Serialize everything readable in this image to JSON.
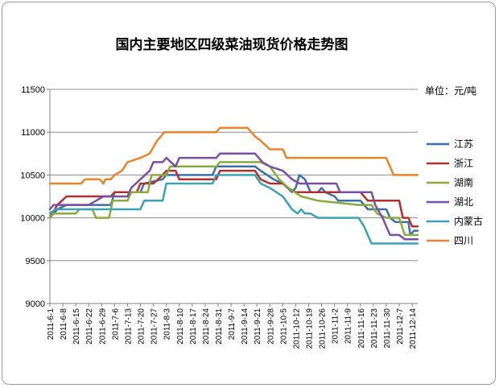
{
  "chart_data": {
    "type": "line",
    "title": "国内主要地区四级菜油现货价格走势图",
    "unit_label": "单位：元/吨",
    "ylim": [
      9000,
      11500
    ],
    "yticks": [
      9000,
      9500,
      10000,
      10500,
      11000,
      11500
    ],
    "grid": "horizontal",
    "legend_position": "right",
    "x_range": [
      "2011-6-1",
      "2011-12-17"
    ],
    "xticks": [
      "2011-6-1",
      "2011-6-8",
      "2011-6-15",
      "2011-6-22",
      "2011-6-29",
      "2011-7-6",
      "2011-7-13",
      "2011-7-20",
      "2011-7-27",
      "2011-8-3",
      "2011-8-10",
      "2011-8-17",
      "2011-8-24",
      "2011-8-31",
      "2011-9-7",
      "2011-9-14",
      "2011-9-21",
      "2011-9-28",
      "2011-10-5",
      "2011-10-12",
      "2011-10-19",
      "2011-10-26",
      "2011-11-2",
      "2011-11-9",
      "2011-11-16",
      "2011-11-23",
      "2011-11-30",
      "2011-12-7",
      "2011-12-14"
    ],
    "series": [
      {
        "name": "江苏",
        "color": "#3a6fa8",
        "points": [
          [
            "2011-6-1",
            10000
          ],
          [
            "2011-6-5",
            10100
          ],
          [
            "2011-6-10",
            10150
          ],
          [
            "2011-7-4",
            10150
          ],
          [
            "2011-7-6",
            10300
          ],
          [
            "2011-7-20",
            10300
          ],
          [
            "2011-7-22",
            10400
          ],
          [
            "2011-8-1",
            10450
          ],
          [
            "2011-8-3",
            10500
          ],
          [
            "2011-8-28",
            10500
          ],
          [
            "2011-8-30",
            10600
          ],
          [
            "2011-9-20",
            10600
          ],
          [
            "2011-9-23",
            10550
          ],
          [
            "2011-9-30",
            10450
          ],
          [
            "2011-10-5",
            10400
          ],
          [
            "2011-10-10",
            10300
          ],
          [
            "2011-10-12",
            10350
          ],
          [
            "2011-10-14",
            10500
          ],
          [
            "2011-10-17",
            10450
          ],
          [
            "2011-10-19",
            10350
          ],
          [
            "2011-10-20",
            10300
          ],
          [
            "2011-10-24",
            10300
          ],
          [
            "2011-10-26",
            10350
          ],
          [
            "2011-10-28",
            10300
          ],
          [
            "2011-11-2",
            10250
          ],
          [
            "2011-11-4",
            10200
          ],
          [
            "2011-11-16",
            10200
          ],
          [
            "2011-11-20",
            10100
          ],
          [
            "2011-11-30",
            10100
          ],
          [
            "2011-12-2",
            10000
          ],
          [
            "2011-12-5",
            9950
          ],
          [
            "2011-12-12",
            9950
          ],
          [
            "2011-12-13",
            9800
          ],
          [
            "2011-12-15",
            9850
          ],
          [
            "2011-12-17",
            9850
          ]
        ]
      },
      {
        "name": "浙江",
        "color": "#b03030",
        "points": [
          [
            "2011-6-1",
            10000
          ],
          [
            "2011-6-5",
            10150
          ],
          [
            "2011-6-10",
            10250
          ],
          [
            "2011-7-4",
            10250
          ],
          [
            "2011-7-6",
            10300
          ],
          [
            "2011-7-18",
            10300
          ],
          [
            "2011-7-20",
            10400
          ],
          [
            "2011-7-27",
            10400
          ],
          [
            "2011-8-1",
            10500
          ],
          [
            "2011-8-3",
            10550
          ],
          [
            "2011-8-8",
            10550
          ],
          [
            "2011-8-10",
            10450
          ],
          [
            "2011-8-30",
            10450
          ],
          [
            "2011-9-1",
            10550
          ],
          [
            "2011-9-20",
            10550
          ],
          [
            "2011-9-23",
            10450
          ],
          [
            "2011-9-28",
            10400
          ],
          [
            "2011-10-5",
            10400
          ],
          [
            "2011-10-8",
            10350
          ],
          [
            "2011-10-12",
            10300
          ],
          [
            "2011-11-16",
            10300
          ],
          [
            "2011-11-20",
            10200
          ],
          [
            "2011-12-7",
            10200
          ],
          [
            "2011-12-9",
            10000
          ],
          [
            "2011-12-12",
            10000
          ],
          [
            "2011-12-14",
            9900
          ],
          [
            "2011-12-17",
            9900
          ]
        ]
      },
      {
        "name": "湖南",
        "color": "#8aaa3c",
        "points": [
          [
            "2011-6-1",
            10000
          ],
          [
            "2011-6-3",
            10050
          ],
          [
            "2011-6-15",
            10050
          ],
          [
            "2011-6-17",
            10100
          ],
          [
            "2011-6-24",
            10100
          ],
          [
            "2011-6-26",
            10000
          ],
          [
            "2011-7-3",
            10000
          ],
          [
            "2011-7-5",
            10200
          ],
          [
            "2011-7-13",
            10200
          ],
          [
            "2011-7-15",
            10300
          ],
          [
            "2011-7-24",
            10300
          ],
          [
            "2011-7-26",
            10500
          ],
          [
            "2011-8-3",
            10500
          ],
          [
            "2011-8-5",
            10600
          ],
          [
            "2011-8-30",
            10600
          ],
          [
            "2011-9-1",
            10650
          ],
          [
            "2011-9-23",
            10650
          ],
          [
            "2011-9-28",
            10600
          ],
          [
            "2011-10-3",
            10450
          ],
          [
            "2011-10-8",
            10350
          ],
          [
            "2011-10-15",
            10250
          ],
          [
            "2011-10-24",
            10200
          ],
          [
            "2011-11-15",
            10150
          ],
          [
            "2011-11-22",
            10150
          ],
          [
            "2011-11-25",
            10050
          ],
          [
            "2011-11-30",
            10000
          ],
          [
            "2011-12-7",
            10000
          ],
          [
            "2011-12-10",
            9800
          ],
          [
            "2011-12-14",
            9800
          ],
          [
            "2011-12-17",
            9800
          ]
        ]
      },
      {
        "name": "湖北",
        "color": "#7b4ea6",
        "points": [
          [
            "2011-6-1",
            10100
          ],
          [
            "2011-6-3",
            10150
          ],
          [
            "2011-6-22",
            10150
          ],
          [
            "2011-6-26",
            10200
          ],
          [
            "2011-6-30",
            10250
          ],
          [
            "2011-7-13",
            10250
          ],
          [
            "2011-7-15",
            10350
          ],
          [
            "2011-7-20",
            10450
          ],
          [
            "2011-7-25",
            10550
          ],
          [
            "2011-7-27",
            10650
          ],
          [
            "2011-8-1",
            10650
          ],
          [
            "2011-8-3",
            10700
          ],
          [
            "2011-8-8",
            10600
          ],
          [
            "2011-8-10",
            10700
          ],
          [
            "2011-8-30",
            10700
          ],
          [
            "2011-9-1",
            10750
          ],
          [
            "2011-9-20",
            10750
          ],
          [
            "2011-9-24",
            10650
          ],
          [
            "2011-9-28",
            10600
          ],
          [
            "2011-10-5",
            10550
          ],
          [
            "2011-10-10",
            10450
          ],
          [
            "2011-10-14",
            10400
          ],
          [
            "2011-11-3",
            10400
          ],
          [
            "2011-11-5",
            10300
          ],
          [
            "2011-11-22",
            10300
          ],
          [
            "2011-11-24",
            10150
          ],
          [
            "2011-11-28",
            10000
          ],
          [
            "2011-12-2",
            9800
          ],
          [
            "2011-12-7",
            9800
          ],
          [
            "2011-12-10",
            9750
          ],
          [
            "2011-12-17",
            9750
          ]
        ]
      },
      {
        "name": "内蒙古",
        "color": "#3aa2b6",
        "points": [
          [
            "2011-6-1",
            10050
          ],
          [
            "2011-6-4",
            10100
          ],
          [
            "2011-7-20",
            10100
          ],
          [
            "2011-7-22",
            10200
          ],
          [
            "2011-8-1",
            10200
          ],
          [
            "2011-8-3",
            10400
          ],
          [
            "2011-8-28",
            10400
          ],
          [
            "2011-8-30",
            10500
          ],
          [
            "2011-9-20",
            10500
          ],
          [
            "2011-9-23",
            10400
          ],
          [
            "2011-9-28",
            10350
          ],
          [
            "2011-10-5",
            10250
          ],
          [
            "2011-10-10",
            10100
          ],
          [
            "2011-10-13",
            10050
          ],
          [
            "2011-10-15",
            10100
          ],
          [
            "2011-10-17",
            10050
          ],
          [
            "2011-10-20",
            10050
          ],
          [
            "2011-10-24",
            10000
          ],
          [
            "2011-11-15",
            10000
          ],
          [
            "2011-11-18",
            9900
          ],
          [
            "2011-11-22",
            9700
          ],
          [
            "2011-12-17",
            9700
          ]
        ]
      },
      {
        "name": "四川",
        "color": "#e8842a",
        "points": [
          [
            "2011-6-1",
            10400
          ],
          [
            "2011-6-18",
            10400
          ],
          [
            "2011-6-20",
            10450
          ],
          [
            "2011-6-28",
            10450
          ],
          [
            "2011-6-30",
            10400
          ],
          [
            "2011-7-1",
            10450
          ],
          [
            "2011-7-4",
            10450
          ],
          [
            "2011-7-6",
            10500
          ],
          [
            "2011-7-10",
            10550
          ],
          [
            "2011-7-13",
            10650
          ],
          [
            "2011-7-20",
            10700
          ],
          [
            "2011-7-25",
            10750
          ],
          [
            "2011-7-29",
            10900
          ],
          [
            "2011-8-2",
            11000
          ],
          [
            "2011-8-30",
            11000
          ],
          [
            "2011-9-1",
            11050
          ],
          [
            "2011-9-16",
            11050
          ],
          [
            "2011-9-20",
            10950
          ],
          [
            "2011-9-23",
            10900
          ],
          [
            "2011-9-28",
            10800
          ],
          [
            "2011-10-5",
            10800
          ],
          [
            "2011-10-7",
            10700
          ],
          [
            "2011-11-30",
            10700
          ],
          [
            "2011-12-2",
            10600
          ],
          [
            "2011-12-4",
            10500
          ],
          [
            "2011-12-17",
            10500
          ]
        ]
      }
    ]
  }
}
